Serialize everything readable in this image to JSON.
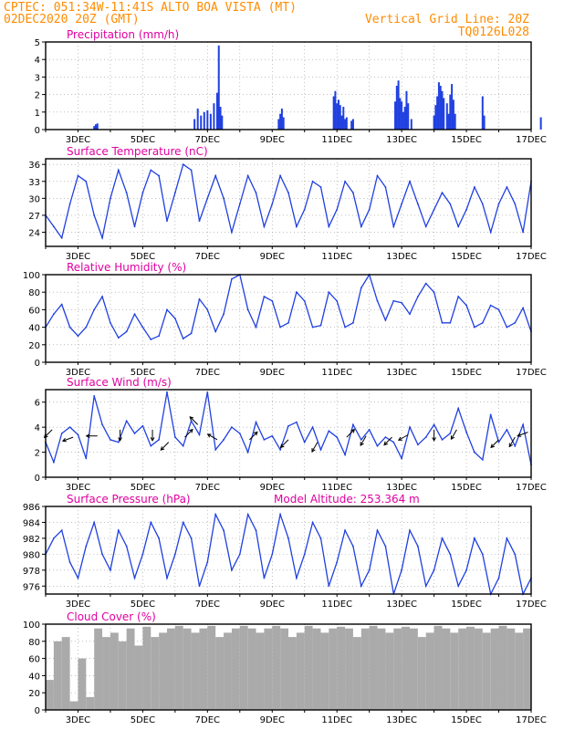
{
  "header": {
    "line1_left": "CPTEC:   051:34W-11:41S   ALTO BOA VISTA (MT)",
    "line2_left": "02DEC2020 20Z (GMT)",
    "line1_right": "Vertical Grid Line: 20Z",
    "line2_right": "TQ0126L028",
    "color": "#ff8c00"
  },
  "colors": {
    "title": "#e000a0",
    "line": "#2040e0",
    "bar": "#2040e0",
    "cloud": "#aaaaaa",
    "grid": "#999999"
  },
  "x_ticks": [
    "3DEC",
    "5DEC",
    "7DEC",
    "9DEC",
    "11DEC",
    "13DEC",
    "15DEC",
    "17DEC"
  ],
  "chart_data": [
    {
      "type": "bar",
      "title": "Precipitation (mm/h)",
      "ylim": [
        0,
        5
      ],
      "yticks": [
        "0",
        "1",
        "2",
        "3",
        "4",
        "5"
      ],
      "x_unit": "days since 02DEC2020 20Z",
      "x": [
        1.5,
        1.55,
        1.6,
        4.6,
        4.7,
        4.8,
        4.9,
        5.0,
        5.1,
        5.2,
        5.3,
        5.35,
        5.4,
        5.45,
        7.2,
        7.25,
        7.3,
        7.35,
        8.9,
        8.95,
        9.0,
        9.05,
        9.1,
        9.15,
        9.2,
        9.25,
        9.3,
        9.45,
        9.5,
        10.8,
        10.85,
        10.9,
        10.95,
        11.0,
        11.05,
        11.1,
        11.15,
        11.2,
        11.3,
        12.0,
        12.05,
        12.1,
        12.15,
        12.2,
        12.25,
        12.3,
        12.4,
        12.45,
        12.5,
        12.55,
        12.6,
        12.65,
        13.5,
        13.55,
        15.3
      ],
      "values": [
        0.2,
        0.3,
        0.35,
        0.6,
        1.2,
        0.8,
        1.0,
        1.1,
        0.9,
        1.5,
        2.1,
        4.8,
        1.3,
        0.8,
        0.6,
        0.9,
        1.2,
        0.7,
        1.9,
        2.2,
        1.5,
        1.7,
        1.4,
        0.8,
        1.3,
        0.6,
        0.7,
        0.5,
        0.6,
        1.6,
        2.5,
        2.8,
        1.8,
        1.6,
        1.0,
        1.3,
        2.2,
        1.5,
        0.6,
        0.8,
        1.4,
        1.9,
        2.7,
        2.5,
        2.2,
        1.8,
        1.5,
        0.9,
        2.0,
        2.6,
        1.7,
        0.9,
        1.9,
        0.8,
        0.7
      ]
    },
    {
      "type": "line",
      "title": "Surface Temperature (nC)",
      "ylim": [
        21.5,
        37
      ],
      "yticks": [
        "24",
        "27",
        "30",
        "33",
        "36"
      ],
      "x_unit": "days since 02DEC2020 20Z",
      "x": [
        0,
        0.25,
        0.5,
        0.75,
        1.0,
        1.25,
        1.5,
        1.75,
        2.0,
        2.25,
        2.5,
        2.75,
        3.0,
        3.25,
        3.5,
        3.75,
        4.0,
        4.25,
        4.5,
        4.75,
        5.0,
        5.25,
        5.5,
        5.75,
        6.0,
        6.25,
        6.5,
        6.75,
        7.0,
        7.25,
        7.5,
        7.75,
        8.0,
        8.25,
        8.5,
        8.75,
        9.0,
        9.25,
        9.5,
        9.75,
        10.0,
        10.25,
        10.5,
        10.75,
        11.0,
        11.25,
        11.5,
        11.75,
        12.0,
        12.25,
        12.5,
        12.75,
        13.0,
        13.25,
        13.5,
        13.75,
        14.0,
        14.25,
        14.5,
        14.75,
        15.0
      ],
      "values": [
        27,
        25,
        23,
        29,
        34,
        33,
        27,
        23,
        30,
        35,
        31,
        25,
        31,
        35,
        34,
        26,
        31,
        36,
        35,
        26,
        30,
        34,
        30,
        24,
        29,
        34,
        31,
        25,
        29,
        34,
        31,
        25,
        28,
        33,
        32,
        25,
        28,
        33,
        31,
        25,
        28,
        34,
        32,
        25,
        29,
        33,
        29,
        25,
        28,
        31,
        29,
        25,
        28,
        32,
        29,
        24,
        29,
        32,
        29,
        24,
        33
      ]
    },
    {
      "type": "line",
      "title": "Relative Humidity (%)",
      "ylim": [
        0,
        100
      ],
      "yticks": [
        "0",
        "20",
        "40",
        "60",
        "80",
        "100"
      ],
      "x_unit": "days since 02DEC2020 20Z",
      "x": [
        0,
        0.25,
        0.5,
        0.75,
        1.0,
        1.25,
        1.5,
        1.75,
        2.0,
        2.25,
        2.5,
        2.75,
        3.0,
        3.25,
        3.5,
        3.75,
        4.0,
        4.25,
        4.5,
        4.75,
        5.0,
        5.25,
        5.5,
        5.75,
        6.0,
        6.25,
        6.5,
        6.75,
        7.0,
        7.25,
        7.5,
        7.75,
        8.0,
        8.25,
        8.5,
        8.75,
        9.0,
        9.25,
        9.5,
        9.75,
        10.0,
        10.25,
        10.5,
        10.75,
        11.0,
        11.25,
        11.5,
        11.75,
        12.0,
        12.25,
        12.5,
        12.75,
        13.0,
        13.25,
        13.5,
        13.75,
        14.0,
        14.25,
        14.5,
        14.75,
        15.0
      ],
      "values": [
        40,
        55,
        66,
        40,
        30,
        40,
        60,
        75,
        45,
        28,
        35,
        55,
        40,
        26,
        30,
        60,
        50,
        27,
        33,
        72,
        60,
        35,
        55,
        95,
        100,
        60,
        40,
        75,
        70,
        40,
        45,
        80,
        70,
        40,
        42,
        80,
        70,
        40,
        45,
        85,
        100,
        70,
        48,
        70,
        68,
        55,
        75,
        90,
        80,
        45,
        45,
        75,
        65,
        40,
        45,
        65,
        60,
        40,
        45,
        62,
        35
      ]
    },
    {
      "type": "line",
      "title": "Surface Wind (m/s)",
      "ylim": [
        0,
        7
      ],
      "yticks": [
        "0",
        "2",
        "4",
        "6"
      ],
      "x_unit": "days since 02DEC2020 20Z",
      "x": [
        0,
        0.25,
        0.5,
        0.75,
        1.0,
        1.25,
        1.5,
        1.75,
        2.0,
        2.25,
        2.5,
        2.75,
        3.0,
        3.25,
        3.5,
        3.75,
        4.0,
        4.25,
        4.5,
        4.75,
        5.0,
        5.25,
        5.5,
        5.75,
        6.0,
        6.25,
        6.5,
        6.75,
        7.0,
        7.25,
        7.5,
        7.75,
        8.0,
        8.25,
        8.5,
        8.75,
        9.0,
        9.25,
        9.5,
        9.75,
        10.0,
        10.25,
        10.5,
        10.75,
        11.0,
        11.25,
        11.5,
        11.75,
        12.0,
        12.25,
        12.5,
        12.75,
        13.0,
        13.25,
        13.5,
        13.75,
        14.0,
        14.25,
        14.5,
        14.75,
        15.0
      ],
      "values": [
        2.8,
        1.2,
        3.5,
        4.0,
        3.4,
        1.5,
        6.5,
        4.2,
        3.0,
        2.8,
        4.5,
        3.5,
        4.1,
        2.5,
        3.0,
        6.8,
        3.2,
        2.5,
        4.5,
        3.4,
        6.8,
        2.2,
        3.0,
        4.0,
        3.5,
        2.0,
        4.4,
        3.0,
        3.3,
        2.2,
        4.1,
        4.4,
        2.8,
        4.0,
        2.2,
        3.7,
        3.2,
        1.8,
        4.2,
        3.0,
        3.8,
        2.5,
        3.2,
        2.8,
        1.5,
        4.0,
        2.6,
        3.2,
        4.2,
        3.0,
        3.5,
        5.5,
        3.6,
        2.0,
        1.4,
        5.0,
        2.8,
        3.8,
        2.5,
        4.2,
        1.0
      ],
      "arrows": [
        {
          "x": 0.2,
          "y": 3.8,
          "dir_deg": 225
        },
        {
          "x": 0.85,
          "y": 3.2,
          "dir_deg": 200
        },
        {
          "x": 1.6,
          "y": 3.3,
          "dir_deg": 180
        },
        {
          "x": 2.3,
          "y": 3.8,
          "dir_deg": 270
        },
        {
          "x": 3.3,
          "y": 3.8,
          "dir_deg": 270
        },
        {
          "x": 3.8,
          "y": 2.8,
          "dir_deg": 225
        },
        {
          "x": 4.3,
          "y": 3.2,
          "dir_deg": 45
        },
        {
          "x": 4.7,
          "y": 4.2,
          "dir_deg": 135
        },
        {
          "x": 5.3,
          "y": 3.0,
          "dir_deg": 150
        },
        {
          "x": 6.3,
          "y": 3.0,
          "dir_deg": 45
        },
        {
          "x": 7.5,
          "y": 3.0,
          "dir_deg": 225
        },
        {
          "x": 8.4,
          "y": 2.8,
          "dir_deg": 240
        },
        {
          "x": 9.3,
          "y": 3.2,
          "dir_deg": 45
        },
        {
          "x": 9.9,
          "y": 3.3,
          "dir_deg": 240
        },
        {
          "x": 10.7,
          "y": 3.2,
          "dir_deg": 225
        },
        {
          "x": 11.2,
          "y": 3.4,
          "dir_deg": 210
        },
        {
          "x": 12.0,
          "y": 3.8,
          "dir_deg": 270
        },
        {
          "x": 12.7,
          "y": 3.8,
          "dir_deg": 240
        },
        {
          "x": 14.0,
          "y": 3.0,
          "dir_deg": 225
        },
        {
          "x": 14.5,
          "y": 3.2,
          "dir_deg": 240
        },
        {
          "x": 14.9,
          "y": 3.6,
          "dir_deg": 200
        }
      ]
    },
    {
      "type": "line",
      "title": "Surface Pressure (hPa)",
      "subtitle": "Model Altitude: 253.364 m",
      "ylim": [
        975,
        986
      ],
      "yticks": [
        "976",
        "978",
        "980",
        "982",
        "984",
        "986"
      ],
      "x_unit": "days since 02DEC2020 20Z",
      "x": [
        0,
        0.25,
        0.5,
        0.75,
        1.0,
        1.25,
        1.5,
        1.75,
        2.0,
        2.25,
        2.5,
        2.75,
        3.0,
        3.25,
        3.5,
        3.75,
        4.0,
        4.25,
        4.5,
        4.75,
        5.0,
        5.25,
        5.5,
        5.75,
        6.0,
        6.25,
        6.5,
        6.75,
        7.0,
        7.25,
        7.5,
        7.75,
        8.0,
        8.25,
        8.5,
        8.75,
        9.0,
        9.25,
        9.5,
        9.75,
        10.0,
        10.25,
        10.5,
        10.75,
        11.0,
        11.25,
        11.5,
        11.75,
        12.0,
        12.25,
        12.5,
        12.75,
        13.0,
        13.25,
        13.5,
        13.75,
        14.0,
        14.25,
        14.5,
        14.75,
        15.0
      ],
      "values": [
        980,
        982,
        983,
        979,
        977,
        981,
        984,
        980,
        978,
        983,
        981,
        977,
        980,
        984,
        982,
        977,
        980,
        984,
        982,
        976,
        979,
        985,
        983,
        978,
        980,
        985,
        983,
        977,
        980,
        985,
        982,
        977,
        980,
        984,
        982,
        976,
        979,
        983,
        981,
        976,
        978,
        983,
        981,
        975,
        978,
        983,
        981,
        976,
        978,
        982,
        980,
        976,
        978,
        982,
        980,
        975,
        977,
        982,
        980,
        975,
        977
      ]
    },
    {
      "type": "area",
      "title": "Cloud Cover (%)",
      "ylim": [
        0,
        100
      ],
      "yticks": [
        "0",
        "20",
        "40",
        "60",
        "80",
        "100"
      ],
      "x_unit": "days since 02DEC2020 20Z",
      "x": [
        0,
        0.25,
        0.5,
        0.75,
        1.0,
        1.25,
        1.5,
        1.75,
        2.0,
        2.25,
        2.5,
        2.75,
        3.0,
        3.25,
        3.5,
        3.75,
        4.0,
        4.25,
        4.5,
        4.75,
        5.0,
        5.25,
        5.5,
        5.75,
        6.0,
        6.25,
        6.5,
        6.75,
        7.0,
        7.25,
        7.5,
        7.75,
        8.0,
        8.25,
        8.5,
        8.75,
        9.0,
        9.25,
        9.5,
        9.75,
        10.0,
        10.25,
        10.5,
        10.75,
        11.0,
        11.25,
        11.5,
        11.75,
        12.0,
        12.25,
        12.5,
        12.75,
        13.0,
        13.25,
        13.5,
        13.75,
        14.0,
        14.25,
        14.5,
        14.75,
        15.0
      ],
      "values": [
        35,
        80,
        85,
        10,
        60,
        15,
        95,
        85,
        90,
        80,
        95,
        75,
        97,
        85,
        90,
        95,
        98,
        95,
        90,
        95,
        98,
        85,
        90,
        95,
        98,
        95,
        90,
        95,
        98,
        95,
        85,
        90,
        98,
        95,
        90,
        95,
        97,
        95,
        85,
        95,
        98,
        95,
        90,
        95,
        97,
        95,
        85,
        90,
        98,
        95,
        90,
        95,
        97,
        95,
        90,
        95,
        98,
        95,
        90,
        95,
        97
      ]
    }
  ]
}
